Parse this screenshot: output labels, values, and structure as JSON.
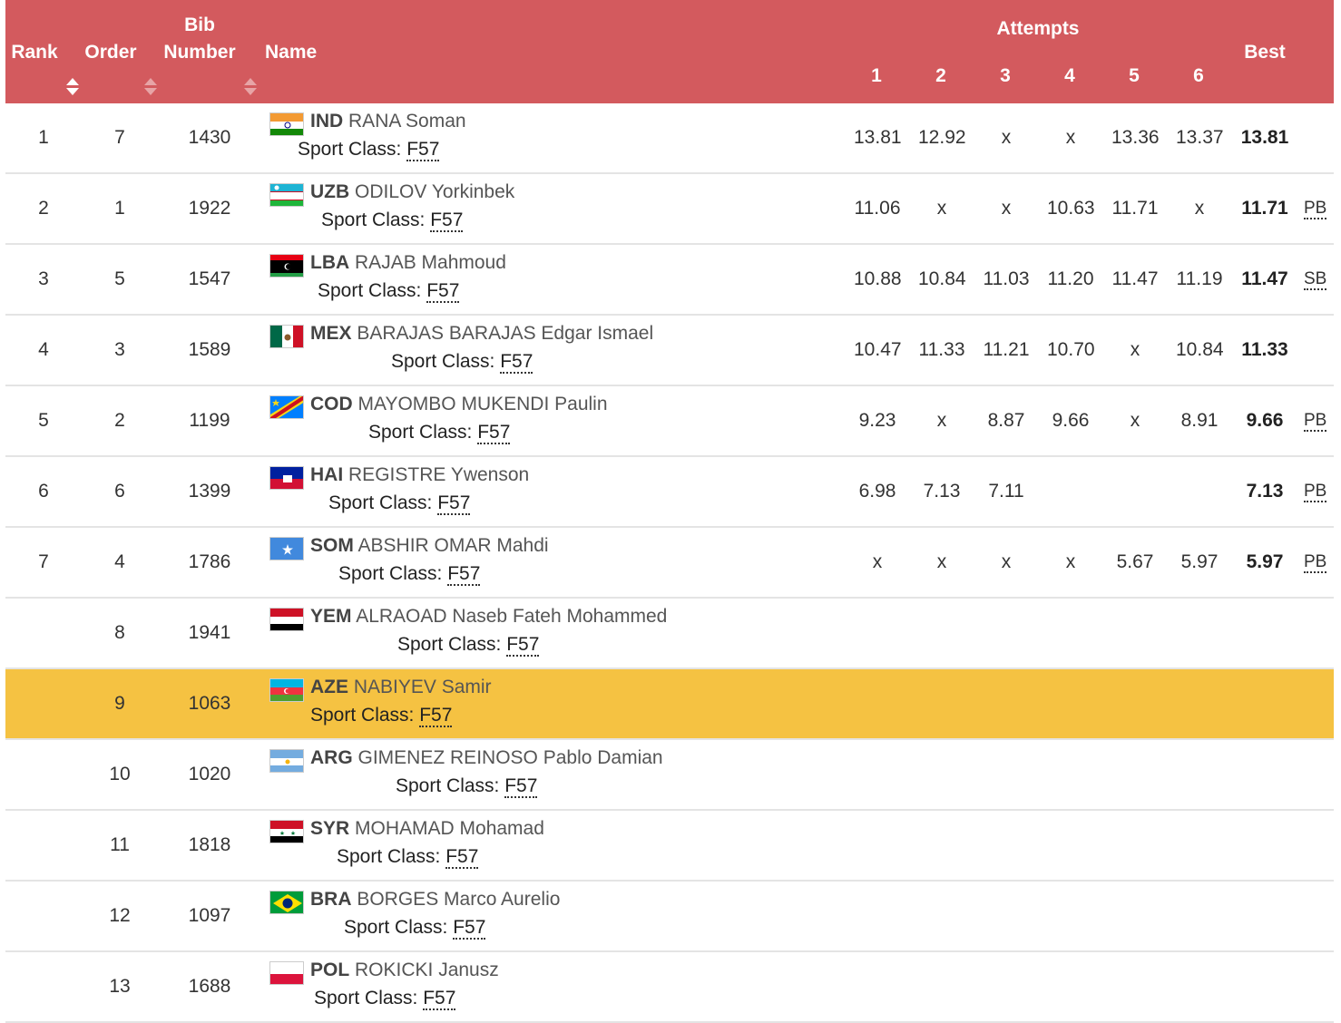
{
  "header": {
    "rank": "Rank",
    "order": "Order",
    "bib1": "Bib",
    "bib2": "Number",
    "name": "Name",
    "attempts": "Attempts",
    "a1": "1",
    "a2": "2",
    "a3": "3",
    "a4": "4",
    "a5": "5",
    "a6": "6",
    "best": "Best"
  },
  "sport_class_label": "Sport Class:",
  "rows": [
    {
      "rank": "1",
      "order": "7",
      "bib": "1430",
      "noc": "IND",
      "name": "RANA Soman",
      "cls": "F57",
      "a": [
        "13.81",
        "12.92",
        "x",
        "x",
        "13.36",
        "13.37"
      ],
      "best": "13.81",
      "rec": "",
      "flag": "IND"
    },
    {
      "rank": "2",
      "order": "1",
      "bib": "1922",
      "noc": "UZB",
      "name": "ODILOV Yorkinbek",
      "cls": "F57",
      "a": [
        "11.06",
        "x",
        "x",
        "10.63",
        "11.71",
        "x"
      ],
      "best": "11.71",
      "rec": "PB",
      "flag": "UZB"
    },
    {
      "rank": "3",
      "order": "5",
      "bib": "1547",
      "noc": "LBA",
      "name": "RAJAB Mahmoud",
      "cls": "F57",
      "a": [
        "10.88",
        "10.84",
        "11.03",
        "11.20",
        "11.47",
        "11.19"
      ],
      "best": "11.47",
      "rec": "SB",
      "flag": "LBA"
    },
    {
      "rank": "4",
      "order": "3",
      "bib": "1589",
      "noc": "MEX",
      "name": "BARAJAS BARAJAS Edgar Ismael",
      "cls": "F57",
      "a": [
        "10.47",
        "11.33",
        "11.21",
        "10.70",
        "x",
        "10.84"
      ],
      "best": "11.33",
      "rec": "",
      "flag": "MEX"
    },
    {
      "rank": "5",
      "order": "2",
      "bib": "1199",
      "noc": "COD",
      "name": "MAYOMBO MUKENDI Paulin",
      "cls": "F57",
      "a": [
        "9.23",
        "x",
        "8.87",
        "9.66",
        "x",
        "8.91"
      ],
      "best": "9.66",
      "rec": "PB",
      "flag": "COD"
    },
    {
      "rank": "6",
      "order": "6",
      "bib": "1399",
      "noc": "HAI",
      "name": "REGISTRE Ywenson",
      "cls": "F57",
      "a": [
        "6.98",
        "7.13",
        "7.11",
        "",
        "",
        ""
      ],
      "best": "7.13",
      "rec": "PB",
      "flag": "HAI"
    },
    {
      "rank": "7",
      "order": "4",
      "bib": "1786",
      "noc": "SOM",
      "name": "ABSHIR OMAR Mahdi",
      "cls": "F57",
      "a": [
        "x",
        "x",
        "x",
        "x",
        "5.67",
        "5.97"
      ],
      "best": "5.97",
      "rec": "PB",
      "flag": "SOM"
    },
    {
      "rank": "",
      "order": "8",
      "bib": "1941",
      "noc": "YEM",
      "name": "ALRAOAD Naseb Fateh Mohammed",
      "cls": "F57",
      "a": [
        "",
        "",
        "",
        "",
        "",
        ""
      ],
      "best": "",
      "rec": "",
      "flag": "YEM"
    },
    {
      "rank": "",
      "order": "9",
      "bib": "1063",
      "noc": "AZE",
      "name": "NABIYEV Samir",
      "cls": "F57",
      "a": [
        "",
        "",
        "",
        "",
        "",
        ""
      ],
      "best": "",
      "rec": "",
      "flag": "AZE",
      "highlight": true
    },
    {
      "rank": "",
      "order": "10",
      "bib": "1020",
      "noc": "ARG",
      "name": "GIMENEZ REINOSO Pablo Damian",
      "cls": "F57",
      "a": [
        "",
        "",
        "",
        "",
        "",
        ""
      ],
      "best": "",
      "rec": "",
      "flag": "ARG"
    },
    {
      "rank": "",
      "order": "11",
      "bib": "1818",
      "noc": "SYR",
      "name": "MOHAMAD Mohamad",
      "cls": "F57",
      "a": [
        "",
        "",
        "",
        "",
        "",
        ""
      ],
      "best": "",
      "rec": "",
      "flag": "SYR"
    },
    {
      "rank": "",
      "order": "12",
      "bib": "1097",
      "noc": "BRA",
      "name": "BORGES Marco Aurelio",
      "cls": "F57",
      "a": [
        "",
        "",
        "",
        "",
        "",
        ""
      ],
      "best": "",
      "rec": "",
      "flag": "BRA"
    },
    {
      "rank": "",
      "order": "13",
      "bib": "1688",
      "noc": "POL",
      "name": "ROKICKI Janusz",
      "cls": "F57",
      "a": [
        "",
        "",
        "",
        "",
        "",
        ""
      ],
      "best": "",
      "rec": "",
      "flag": "POL"
    }
  ],
  "colors": {
    "header_bg": "#d35a5e",
    "highlight": "#f5c242"
  }
}
